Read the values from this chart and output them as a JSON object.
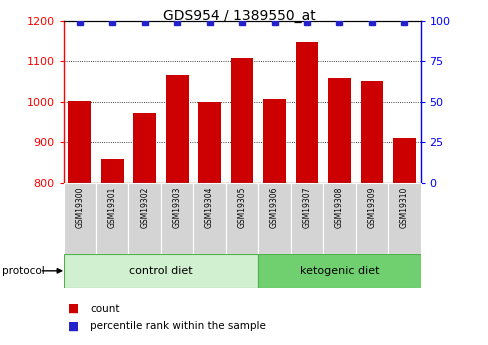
{
  "title": "GDS954 / 1389550_at",
  "samples": [
    "GSM19300",
    "GSM19301",
    "GSM19302",
    "GSM19303",
    "GSM19304",
    "GSM19305",
    "GSM19306",
    "GSM19307",
    "GSM19308",
    "GSM19309",
    "GSM19310"
  ],
  "counts": [
    1002,
    858,
    972,
    1065,
    1000,
    1107,
    1008,
    1148,
    1058,
    1052,
    910
  ],
  "percentile_ranks": [
    99,
    99,
    99,
    99,
    99,
    99,
    99,
    99,
    99,
    99,
    99
  ],
  "ylim_left": [
    800,
    1200
  ],
  "ylim_right": [
    0,
    100
  ],
  "yticks_left": [
    800,
    900,
    1000,
    1100,
    1200
  ],
  "yticks_right": [
    0,
    25,
    50,
    75,
    100
  ],
  "bar_color": "#cc0000",
  "dot_color": "#2222cc",
  "sample_box_color": "#d4d4d4",
  "ctrl_diet_color": "#d0f0d0",
  "keto_diet_color": "#70d070",
  "ctrl_diet_n": 6,
  "keto_diet_n": 5,
  "ctrl_diet_label": "control diet",
  "keto_diet_label": "ketogenic diet",
  "protocol_label": "protocol",
  "legend_count_label": "count",
  "legend_pct_label": "percentile rank within the sample"
}
